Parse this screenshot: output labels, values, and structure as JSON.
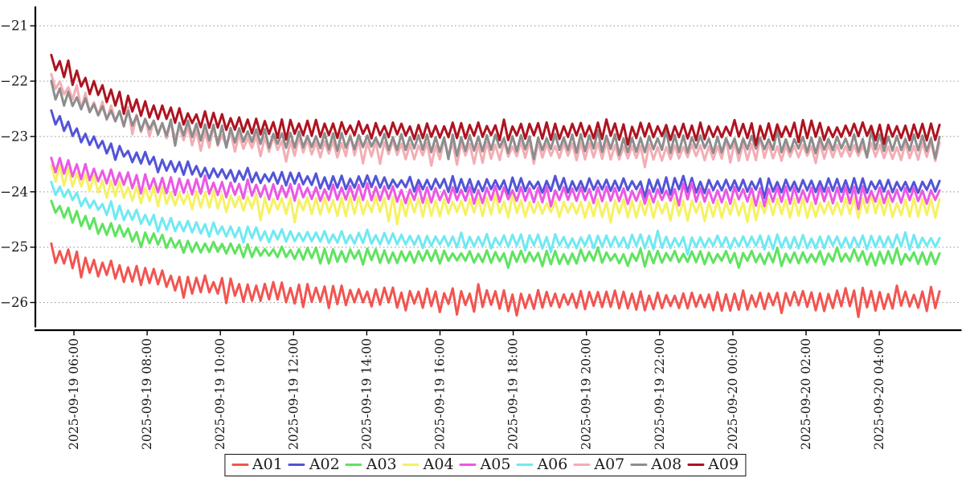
{
  "chart": {
    "background_color": "#ffffff",
    "axis_color": "#000000",
    "grid_color": "#999999",
    "grid_style": "dotted-horizontal"
  },
  "chart_data": {
    "type": "line",
    "title": "",
    "xlabel": "",
    "ylabel": "",
    "x_tick_labels": [
      "2025-09-19 06:00",
      "2025-09-19 08:00",
      "2025-09-19 10:00",
      "2025-09-19 12:00",
      "2025-09-19 14:00",
      "2025-09-19 16:00",
      "2025-09-19 18:00",
      "2025-09-19 20:00",
      "2025-09-19 22:00",
      "2025-09-20 00:00",
      "2025-09-20 02:00",
      "2025-09-20 04:00"
    ],
    "x_tick_interval_hours": 2,
    "x_data_range_hours_from_first_tick": [
      -0.62,
      23.73
    ],
    "y_tick_labels": [
      "−21",
      "−22",
      "−23",
      "−24",
      "−25",
      "−26"
    ],
    "y_tick_values": [
      -21,
      -22,
      -23,
      -24,
      -25,
      -26
    ],
    "ylim": [
      -26.5,
      -20.65
    ],
    "grid": "horizontal-dotted",
    "legend_position": "bottom-center",
    "sample_step_minutes": 7,
    "series": [
      {
        "name": "A01",
        "color": "#f25450",
        "start_value": -25.1,
        "steady_value": -25.97,
        "oscillation_amplitude": 0.15,
        "decay_tau_hours": 3.6
      },
      {
        "name": "A02",
        "color": "#5254d8",
        "start_value": -22.66,
        "steady_value": -23.89,
        "oscillation_amplitude": 0.11,
        "decay_tau_hours": 2.7
      },
      {
        "name": "A03",
        "color": "#5fe35f",
        "start_value": -24.25,
        "steady_value": -25.19,
        "oscillation_amplitude": 0.1,
        "decay_tau_hours": 2.6
      },
      {
        "name": "A04",
        "color": "#f6f163",
        "start_value": -23.64,
        "steady_value": -24.29,
        "oscillation_amplitude": 0.15,
        "decay_tau_hours": 2.6
      },
      {
        "name": "A05",
        "color": "#ec58e4",
        "start_value": -23.46,
        "steady_value": -24.06,
        "oscillation_amplitude": 0.13,
        "decay_tau_hours": 2.6
      },
      {
        "name": "A06",
        "color": "#6fe9f2",
        "start_value": -23.9,
        "steady_value": -24.91,
        "oscillation_amplitude": 0.11,
        "decay_tau_hours": 2.9
      },
      {
        "name": "A07",
        "color": "#f3adb3",
        "start_value": -21.98,
        "steady_value": -23.27,
        "oscillation_amplitude": 0.14,
        "decay_tau_hours": 2.5
      },
      {
        "name": "A08",
        "color": "#8d8d8d",
        "start_value": -22.14,
        "steady_value": -23.13,
        "oscillation_amplitude": 0.14,
        "decay_tau_hours": 2.5
      },
      {
        "name": "A09",
        "color": "#ae1320",
        "start_value": -21.62,
        "steady_value": -22.91,
        "oscillation_amplitude": 0.13,
        "decay_tau_hours": 2.3
      }
    ]
  }
}
